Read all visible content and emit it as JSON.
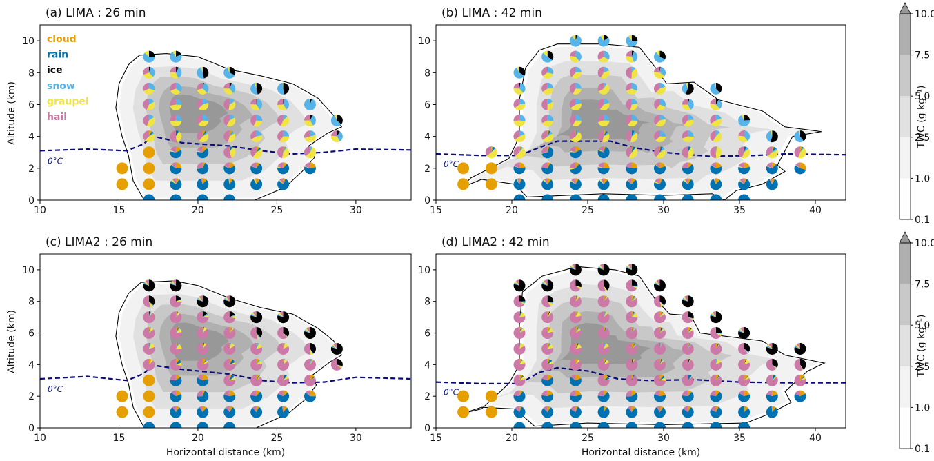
{
  "colors": {
    "cloud": "#e69f00",
    "rain": "#0072b2",
    "ice": "#000000",
    "snow": "#56b4e9",
    "graupel": "#f0e442",
    "hail": "#cc79a7",
    "freezing_line": "#0a0a7a",
    "twc_levels": [
      "#ffffff",
      "#f2f2f2",
      "#e0e0e0",
      "#c8c8c8",
      "#b0b0b0",
      "#989898"
    ]
  },
  "legend": [
    {
      "key": "cloud",
      "label": "cloud"
    },
    {
      "key": "rain",
      "label": "rain"
    },
    {
      "key": "ice",
      "label": "ice"
    },
    {
      "key": "snow",
      "label": "snow"
    },
    {
      "key": "graupel",
      "label": "graupel"
    },
    {
      "key": "hail",
      "label": "hail"
    }
  ],
  "chart_data": [
    {
      "type": "contour",
      "title": "(a) LIMA : 26 min",
      "xlabel": "",
      "ylabel": "Altitude (km)",
      "xlim": [
        10,
        33.5
      ],
      "ylim": [
        0,
        11
      ],
      "xticks": [
        "10",
        "15",
        "20",
        "25",
        "30"
      ],
      "yticks": [
        "0",
        "2",
        "4",
        "6",
        "8",
        "10"
      ],
      "freezing_label": "0°C",
      "freezing_level": [
        [
          10,
          3.1
        ],
        [
          13,
          3.2
        ],
        [
          15.5,
          3.1
        ],
        [
          16.5,
          3.5
        ],
        [
          17.2,
          4.0
        ],
        [
          19,
          3.6
        ],
        [
          22,
          3.4
        ],
        [
          24,
          3.1
        ],
        [
          26,
          2.9
        ],
        [
          28,
          3.0
        ],
        [
          30,
          3.2
        ],
        [
          33.5,
          3.15
        ]
      ],
      "cloud_outline": [
        [
          16.6,
          0
        ],
        [
          15.9,
          1.2
        ],
        [
          15.6,
          2.8
        ],
        [
          15.2,
          4.0
        ],
        [
          14.8,
          5.8
        ],
        [
          15.0,
          7.3
        ],
        [
          15.6,
          8.5
        ],
        [
          16.3,
          9.1
        ],
        [
          18.0,
          9.2
        ],
        [
          20,
          9.0
        ],
        [
          22,
          8.2
        ],
        [
          24,
          7.8
        ],
        [
          26,
          7.3
        ],
        [
          27.6,
          6.4
        ],
        [
          28.6,
          5.3
        ],
        [
          29.1,
          4.6
        ],
        [
          28.2,
          4.2
        ],
        [
          27.0,
          3.4
        ],
        [
          27.4,
          2.7
        ],
        [
          26.6,
          1.8
        ],
        [
          25.5,
          0.8
        ],
        [
          23.6,
          0
        ],
        [
          17,
          0
        ]
      ]
    },
    {
      "type": "contour",
      "title": "(b) LIMA : 42 min",
      "xlabel": "",
      "ylabel": "",
      "xlim": [
        15,
        42
      ],
      "ylim": [
        0,
        11
      ],
      "xticks": [
        "15",
        "20",
        "25",
        "30",
        "35",
        "40"
      ],
      "yticks": [
        "0",
        "2",
        "4",
        "6",
        "8",
        "10"
      ],
      "freezing_label": "0°C",
      "freezing_level": [
        [
          15,
          2.9
        ],
        [
          18,
          2.8
        ],
        [
          20.5,
          2.8
        ],
        [
          21.8,
          3.3
        ],
        [
          23,
          3.7
        ],
        [
          26.5,
          3.7
        ],
        [
          28,
          3.3
        ],
        [
          30,
          3.0
        ],
        [
          33,
          2.75
        ],
        [
          36,
          2.8
        ],
        [
          38,
          2.9
        ],
        [
          42,
          2.85
        ]
      ],
      "cloud_outline": [
        [
          16.7,
          0.8
        ],
        [
          17.3,
          1.4
        ],
        [
          19.8,
          2.6
        ],
        [
          20.5,
          4.0
        ],
        [
          20.5,
          6.3
        ],
        [
          20.9,
          8.3
        ],
        [
          21.8,
          9.4
        ],
        [
          23,
          9.8
        ],
        [
          26,
          9.8
        ],
        [
          28.4,
          9.6
        ],
        [
          29.4,
          8.4
        ],
        [
          30.2,
          7.3
        ],
        [
          32,
          7.4
        ],
        [
          33.6,
          6.3
        ],
        [
          36.5,
          5.6
        ],
        [
          38.0,
          4.6
        ],
        [
          40.4,
          4.3
        ],
        [
          38.5,
          4.0
        ],
        [
          37.5,
          2.2
        ],
        [
          38.0,
          1.8
        ],
        [
          36.5,
          1.0
        ],
        [
          34.8,
          0.6
        ],
        [
          34,
          0
        ],
        [
          33.2,
          0.4
        ],
        [
          30,
          0.3
        ],
        [
          26,
          0.4
        ],
        [
          21,
          0.2
        ],
        [
          20.2,
          1.0
        ],
        [
          18,
          1.3
        ]
      ]
    },
    {
      "type": "contour",
      "title": "(c) LIMA2 : 26 min",
      "xlabel": "Horizontal distance (km)",
      "ylabel": "Altitude (km)",
      "xlim": [
        10,
        33.5
      ],
      "ylim": [
        0,
        11
      ],
      "xticks": [
        "10",
        "15",
        "20",
        "25",
        "30"
      ],
      "yticks": [
        "0",
        "2",
        "4",
        "6",
        "8",
        "10"
      ],
      "freezing_label": "0°C",
      "freezing_level": [
        [
          10,
          3.1
        ],
        [
          13,
          3.25
        ],
        [
          15.5,
          3.0
        ],
        [
          16.5,
          3.4
        ],
        [
          17.2,
          3.95
        ],
        [
          19,
          3.7
        ],
        [
          22,
          3.4
        ],
        [
          24,
          3.0
        ],
        [
          26,
          2.85
        ],
        [
          28,
          2.9
        ],
        [
          30,
          3.2
        ],
        [
          33.5,
          3.1
        ]
      ],
      "cloud_outline": [
        [
          16.6,
          0
        ],
        [
          15.9,
          1.3
        ],
        [
          15.6,
          2.8
        ],
        [
          15.2,
          4.0
        ],
        [
          14.8,
          5.8
        ],
        [
          15.0,
          7.3
        ],
        [
          15.6,
          8.5
        ],
        [
          16.4,
          9.2
        ],
        [
          18.5,
          9.3
        ],
        [
          20,
          9.0
        ],
        [
          22,
          8.2
        ],
        [
          24,
          7.6
        ],
        [
          26,
          7.2
        ],
        [
          27.6,
          6.3
        ],
        [
          28.6,
          5.5
        ],
        [
          29.1,
          4.6
        ],
        [
          28.4,
          4.2
        ],
        [
          27.2,
          3.3
        ],
        [
          27.5,
          2.7
        ],
        [
          26.8,
          1.8
        ],
        [
          25.7,
          0.9
        ],
        [
          23.7,
          0
        ],
        [
          17,
          0
        ]
      ]
    },
    {
      "type": "contour",
      "title": "(d) LIMA2 : 42 min",
      "xlabel": "Horizontal distance (km)",
      "ylabel": "",
      "xlim": [
        15,
        42
      ],
      "ylim": [
        0,
        11
      ],
      "xticks": [
        "15",
        "20",
        "25",
        "30",
        "35",
        "40"
      ],
      "yticks": [
        "0",
        "2",
        "4",
        "6",
        "8",
        "10"
      ],
      "freezing_label": "0°C",
      "freezing_level": [
        [
          15,
          2.9
        ],
        [
          18,
          2.8
        ],
        [
          20.5,
          2.8
        ],
        [
          21.8,
          3.5
        ],
        [
          23,
          3.8
        ],
        [
          25,
          3.6
        ],
        [
          27,
          3.1
        ],
        [
          29,
          3.0
        ],
        [
          32,
          3.05
        ],
        [
          35,
          2.9
        ],
        [
          38,
          2.85
        ],
        [
          42,
          2.85
        ]
      ],
      "cloud_outline": [
        [
          16.7,
          0.9
        ],
        [
          18,
          1.2
        ],
        [
          19.8,
          2.8
        ],
        [
          20.5,
          4.0
        ],
        [
          20.5,
          6.5
        ],
        [
          20.7,
          8.6
        ],
        [
          22,
          9.6
        ],
        [
          24.3,
          10.2
        ],
        [
          26.8,
          10.0
        ],
        [
          28.4,
          9.6
        ],
        [
          29.4,
          8.2
        ],
        [
          30.4,
          7.2
        ],
        [
          31.8,
          7.1
        ],
        [
          32.4,
          6.0
        ],
        [
          34,
          5.8
        ],
        [
          36.5,
          5.5
        ],
        [
          38.0,
          4.6
        ],
        [
          40.6,
          4.1
        ],
        [
          39.5,
          3.6
        ],
        [
          38.0,
          2.3
        ],
        [
          38.4,
          1.6
        ],
        [
          37.0,
          0.9
        ],
        [
          35.4,
          0.3
        ],
        [
          30,
          0.2
        ],
        [
          25,
          0.3
        ],
        [
          21.5,
          0.1
        ],
        [
          20.2,
          1.2
        ],
        [
          18,
          1.3
        ]
      ]
    }
  ],
  "colorbar": {
    "label": "TWC (g kg⁻¹)",
    "ticks": [
      "0.1",
      "1.0",
      "2.5",
      "5.0",
      "7.5",
      "10.0"
    ]
  }
}
